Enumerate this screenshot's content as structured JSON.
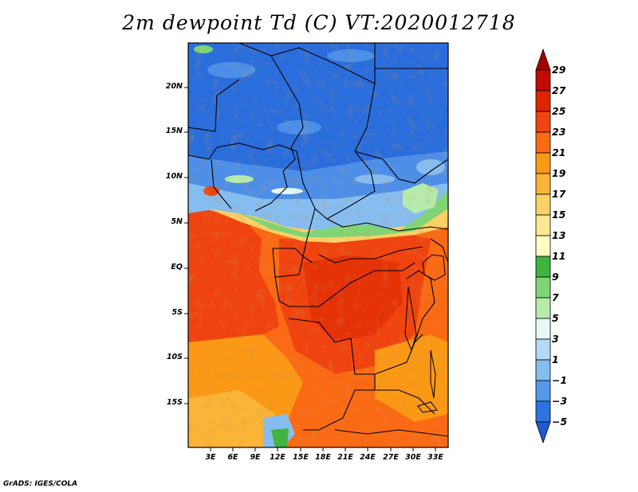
{
  "title": "2m dewpoint Td (C) VT:2020012718",
  "credit": "GrADS: IGES/COLA",
  "map": {
    "lat_labels": [
      "20N",
      "15N",
      "10N",
      "5N",
      "EQ",
      "5S",
      "10S",
      "15S"
    ],
    "lon_labels": [
      "3E",
      "6E",
      "9E",
      "12E",
      "15E",
      "18E",
      "21E",
      "24E",
      "27E",
      "30E",
      "33E"
    ]
  },
  "colorbar": {
    "labels": [
      "29",
      "27",
      "25",
      "23",
      "21",
      "19",
      "17",
      "15",
      "13",
      "11",
      "9",
      "7",
      "5",
      "3",
      "1",
      "−1",
      "−3",
      "−5"
    ],
    "colors": [
      "#a50000",
      "#c20a00",
      "#dd2500",
      "#f04410",
      "#fa6a14",
      "#fb9816",
      "#fbb437",
      "#fbd067",
      "#fbe892",
      "#fcfcc4",
      "#3db53f",
      "#7fd575",
      "#b6ebac",
      "#e5f8f4",
      "#b5daf4",
      "#86bdf0",
      "#5499ec",
      "#2e74e0",
      "#1d5ad2"
    ]
  }
}
